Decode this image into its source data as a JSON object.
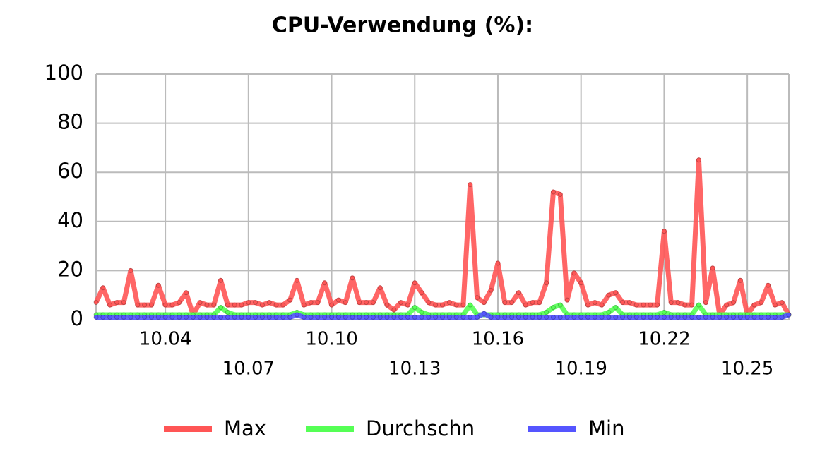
{
  "chart_data": {
    "type": "line",
    "title": "CPU-Verwendung (%):",
    "categories": [
      null,
      null,
      null,
      null,
      null,
      null,
      null,
      null,
      null,
      null,
      "10.04",
      null,
      null,
      null,
      null,
      null,
      null,
      null,
      null,
      null,
      null,
      null,
      "10.07",
      null,
      null,
      null,
      null,
      null,
      null,
      null,
      null,
      null,
      null,
      null,
      "10.10",
      null,
      null,
      null,
      null,
      null,
      null,
      null,
      null,
      null,
      null,
      null,
      "10.13",
      null,
      null,
      null,
      null,
      null,
      null,
      null,
      null,
      null,
      null,
      null,
      "10.16",
      null,
      null,
      null,
      null,
      null,
      null,
      null,
      null,
      null,
      null,
      null,
      "10.19",
      null,
      null,
      null,
      null,
      null,
      null,
      null,
      null,
      null,
      null,
      null,
      "10.22",
      null,
      null,
      null,
      null,
      null,
      null,
      null,
      null,
      null,
      null,
      null,
      "10.25",
      null,
      null,
      null,
      null,
      null,
      null
    ],
    "series": [
      {
        "name": "Max",
        "color": "#ff5555",
        "values": [
          7,
          13,
          6,
          7,
          7,
          20,
          6,
          6,
          6,
          14,
          6,
          6,
          7,
          11,
          2,
          7,
          6,
          6,
          16,
          6,
          6,
          6,
          7,
          7,
          6,
          7,
          6,
          6,
          8,
          16,
          6,
          7,
          7,
          15,
          6,
          8,
          7,
          17,
          7,
          7,
          7,
          13,
          6,
          4,
          7,
          6,
          15,
          11,
          7,
          6,
          6,
          7,
          6,
          6,
          55,
          9,
          7,
          12,
          23,
          7,
          7,
          11,
          6,
          7,
          7,
          15,
          52,
          51,
          8,
          19,
          15,
          6,
          7,
          6,
          10,
          11,
          7,
          7,
          6,
          6,
          6,
          6,
          36,
          7,
          7,
          6,
          6,
          65,
          7,
          21,
          2,
          6,
          7,
          16,
          2,
          6,
          7,
          14,
          6,
          7,
          2
        ]
      },
      {
        "name": "Durchschn",
        "color": "#55ff55",
        "values": [
          2,
          2,
          2,
          2,
          2,
          2,
          2,
          2,
          2,
          2,
          2,
          2,
          2,
          2,
          2,
          2,
          2,
          2,
          5,
          3,
          2,
          2,
          2,
          2,
          2,
          2,
          2,
          2,
          2,
          3,
          2,
          2,
          2,
          2,
          2,
          2,
          2,
          2,
          2,
          2,
          2,
          2,
          2,
          2,
          2,
          2,
          5,
          3,
          2,
          2,
          2,
          2,
          2,
          2,
          6,
          2,
          2,
          2,
          2,
          2,
          2,
          2,
          2,
          2,
          2,
          3,
          5,
          6,
          2,
          2,
          2,
          2,
          2,
          2,
          3,
          5,
          2,
          2,
          2,
          2,
          2,
          2,
          3,
          2,
          2,
          2,
          2,
          6,
          2,
          2,
          2,
          2,
          2,
          2,
          2,
          2,
          2,
          2,
          2,
          2,
          2
        ]
      },
      {
        "name": "Min",
        "color": "#5555ff",
        "values": [
          1,
          1,
          1,
          1,
          1,
          1,
          1,
          1,
          1,
          1,
          1,
          1,
          1,
          1,
          1,
          1,
          1,
          1,
          1,
          1,
          1,
          1,
          1,
          1,
          1,
          1,
          1,
          1,
          1,
          2,
          1,
          1,
          1,
          1,
          1,
          1,
          1,
          1,
          1,
          1,
          1,
          1,
          1,
          1,
          1,
          1,
          1,
          1,
          1,
          1,
          1,
          1,
          1,
          1,
          1,
          1,
          2.5,
          1,
          1,
          1,
          1,
          1,
          1,
          1,
          1,
          1,
          1,
          1,
          1,
          1,
          1,
          1,
          1,
          1,
          1,
          1,
          1,
          1,
          1,
          1,
          1,
          1,
          1,
          1,
          1,
          1,
          1,
          1,
          1,
          1,
          1,
          1,
          1,
          1,
          1,
          1,
          1,
          1,
          1,
          1,
          2
        ]
      }
    ],
    "ylim": [
      0,
      100
    ],
    "yticks": [
      0,
      20,
      40,
      60,
      80,
      100
    ],
    "grid": true,
    "legend": "bottom"
  }
}
